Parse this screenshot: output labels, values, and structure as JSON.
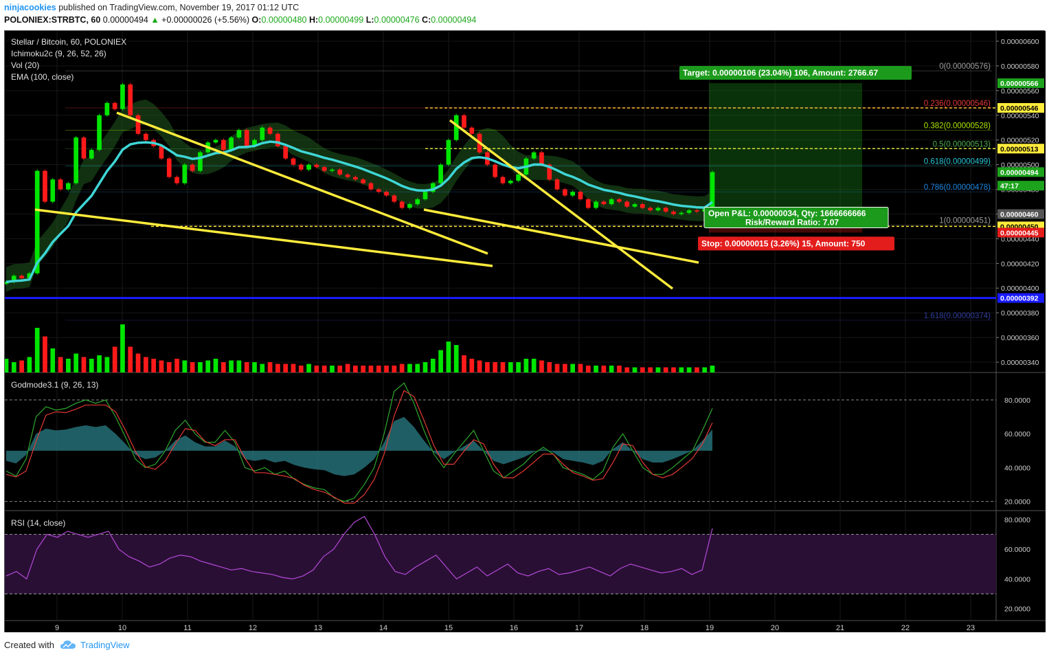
{
  "header": {
    "user": "ninjacookies",
    "published_text": "published on TradingView.com, November 19, 2017 01:12 UTC",
    "symbol_line": "POLONIEX:STRBTC, 60",
    "last_price": "0.00000494",
    "change_text": "+0.00000026 (+5.56%)",
    "o_label": "O:",
    "o_value": "0.00000480",
    "h_label": "H:",
    "h_value": "0.00000499",
    "l_label": "L:",
    "l_value": "0.00000476",
    "c_label": "C:",
    "c_value": "0.00000494"
  },
  "legend": {
    "title": "Stellar / Bitcoin, 60, POLONIEX",
    "ichimoku": "Ichimoku2c (9, 26, 52, 26)",
    "vol": "Vol (20)",
    "ema": "EMA (100, close)",
    "godmode": "Godmode3.1 (9, 26, 13)",
    "rsi": "RSI (14, close)"
  },
  "colors": {
    "bg": "#000000",
    "up": "#00e600",
    "down": "#ff1a1a",
    "ema": "#3fd6d6",
    "cloud": "#1f5a1f",
    "trendline": "#ffeb3b",
    "fib_line": "#ffeb3b",
    "support": "#1a1aff",
    "target_box": "#1c8f1c",
    "stop_box": "#e31c1c",
    "rsi_line": "#b44ad8",
    "rsi_band": "#2a0f35",
    "godmode_fill": "#2a7d86",
    "godmode_green": "#2ea82e",
    "godmode_red": "#e53935",
    "axis_text": "#d0d0d0"
  },
  "chart_data": {
    "type": "candlestick",
    "x_ticks": [
      "9",
      "10",
      "11",
      "12",
      "13",
      "14",
      "15",
      "16",
      "17",
      "18",
      "19",
      "20",
      "21",
      "22",
      "23"
    ],
    "price_axis": {
      "ticks": [
        "0.00000600",
        "0.00000580",
        "0.00000560",
        "0.00000540",
        "0.00000520",
        "0.00000500",
        "0.00000480",
        "0.00000460",
        "0.00000440",
        "0.00000420",
        "0.00000400",
        "0.00000380",
        "0.00000360",
        "0.00000340"
      ],
      "range": [
        3.35e-06,
        6.05e-06
      ]
    },
    "price_markers": [
      {
        "label": "0.00000566",
        "value": 5.66e-06,
        "style": "green"
      },
      {
        "label": "0.00000546",
        "value": 5.46e-06,
        "style": "yellow"
      },
      {
        "label": "0.00000513",
        "value": 5.13e-06,
        "style": "yellow"
      },
      {
        "label": "0.00000494",
        "value": 4.94e-06,
        "style": "green"
      },
      {
        "label": "47:17",
        "value": 4.83e-06,
        "style": "green"
      },
      {
        "label": "0.00000460",
        "value": 4.6e-06,
        "style": "gray"
      },
      {
        "label": "0.00000450",
        "value": 4.5e-06,
        "style": "yellow"
      },
      {
        "label": "0.00000445",
        "value": 4.45e-06,
        "style": "red"
      },
      {
        "label": "0.00000392",
        "value": 3.92e-06,
        "style": "blue"
      }
    ],
    "fib_levels": [
      {
        "label": "0(0.00000576)",
        "value": 5.76e-06,
        "color": "#9e9e9e"
      },
      {
        "label": "0.236(0.00000546)",
        "value": 5.46e-06,
        "color": "#e53935"
      },
      {
        "label": "0.382(0.00000528)",
        "value": 5.28e-06,
        "color": "#aeea00"
      },
      {
        "label": "0.5(0.00000513)",
        "value": 5.13e-06,
        "color": "#4caf50"
      },
      {
        "label": "0.618(0.00000499)",
        "value": 4.99e-06,
        "color": "#26c6da"
      },
      {
        "label": "0.786(0.00000478)",
        "value": 4.78e-06,
        "color": "#1e88e5"
      },
      {
        "label": "1(0.00000451)",
        "value": 4.51e-06,
        "color": "#9e9e9e"
      },
      {
        "label": "1.618(0.00000374)",
        "value": 3.74e-06,
        "color": "#303f9f"
      }
    ],
    "dashed_levels": [
      5.46e-06,
      5.13e-06,
      4.5e-06
    ],
    "support_level": 3.92e-06,
    "position": {
      "entry": 4.6e-06,
      "target": 5.66e-06,
      "stop": 4.45e-06,
      "target_text": "Target: 0.00000106 (23.04%) 106, Amount: 2766.67",
      "pnl_text": "Open P&L: 0.00000034, Qty: 1666666666",
      "rr_text": "Risk/Reward Ratio: 7.07",
      "stop_text": "Stop: 0.00000015 (3.26%) 15, Amount: 750"
    },
    "closes": [
      4.05e-06,
      4.1e-06,
      4.08e-06,
      4.12e-06,
      4.95e-06,
      4.7e-06,
      4.88e-06,
      4.8e-06,
      4.85e-06,
      5.22e-06,
      5.05e-06,
      5.12e-06,
      5.4e-06,
      5.5e-06,
      5.45e-06,
      5.65e-06,
      5.4e-06,
      5.25e-06,
      5.2e-06,
      5.15e-06,
      5.05e-06,
      4.9e-06,
      4.85e-06,
      5e-06,
      4.95e-06,
      5.1e-06,
      5.18e-06,
      5.2e-06,
      5.12e-06,
      5.22e-06,
      5.28e-06,
      5.15e-06,
      5.2e-06,
      5.3e-06,
      5.25e-06,
      5.15e-06,
      5.05e-06,
      5e-06,
      4.96e-06,
      5e-06,
      4.98e-06,
      4.95e-06,
      4.96e-06,
      4.92e-06,
      4.9e-06,
      4.88e-06,
      4.85e-06,
      4.8e-06,
      4.78e-06,
      4.75e-06,
      4.7e-06,
      4.65e-06,
      4.68e-06,
      4.72e-06,
      4.78e-06,
      4.85e-06,
      5e-06,
      5.2e-06,
      5.4e-06,
      5.3e-06,
      5.25e-06,
      5.1e-06,
      5e-06,
      4.9e-06,
      4.85e-06,
      4.87e-06,
      4.92e-06,
      5.05e-06,
      5.1e-06,
      5e-06,
      4.88e-06,
      4.8e-06,
      4.75e-06,
      4.78e-06,
      4.72e-06,
      4.65e-06,
      4.7e-06,
      4.68e-06,
      4.72e-06,
      4.7e-06,
      4.66e-06,
      4.68e-06,
      4.65e-06,
      4.63e-06,
      4.65e-06,
      4.62e-06,
      4.6e-06,
      4.61e-06,
      4.63e-06,
      4.62e-06,
      4.64e-06,
      4.94e-06
    ],
    "volumes": [
      0.8,
      0.6,
      0.7,
      0.9,
      2.6,
      2.1,
      1.4,
      0.9,
      0.8,
      1.1,
      0.9,
      0.8,
      1.0,
      0.9,
      1.5,
      2.8,
      1.5,
      1.1,
      0.9,
      0.8,
      0.7,
      0.6,
      0.8,
      0.7,
      0.6,
      0.6,
      0.7,
      0.8,
      0.6,
      0.7,
      0.7,
      0.6,
      0.6,
      0.5,
      0.6,
      0.5,
      0.5,
      0.5,
      0.4,
      0.5,
      0.4,
      0.4,
      0.4,
      0.4,
      0.5,
      0.4,
      0.4,
      0.4,
      0.4,
      0.4,
      0.4,
      0.5,
      0.5,
      0.5,
      0.6,
      0.8,
      1.3,
      1.8,
      1.6,
      1.0,
      0.8,
      0.7,
      0.6,
      0.6,
      0.6,
      0.6,
      0.6,
      0.8,
      0.8,
      0.7,
      0.6,
      0.5,
      0.5,
      0.5,
      0.5,
      0.4,
      0.4,
      0.4,
      0.4,
      0.4,
      0.3,
      0.3,
      0.3,
      0.3,
      0.3,
      0.3,
      0.3,
      0.3,
      0.3,
      0.3,
      0.3,
      0.4
    ],
    "godmode": {
      "ticks": [
        "80.0000",
        "60.0000",
        "40.0000",
        "20.0000"
      ],
      "range": [
        15,
        95
      ],
      "bands": [
        80,
        20
      ],
      "tci": [
        38,
        35,
        45,
        70,
        76,
        74,
        75,
        78,
        80,
        78,
        80,
        70,
        58,
        45,
        40,
        42,
        50,
        62,
        68,
        60,
        55,
        55,
        62,
        55,
        40,
        38,
        40,
        36,
        38,
        33,
        30,
        28,
        27,
        22,
        20,
        22,
        30,
        40,
        60,
        85,
        90,
        78,
        62,
        48,
        40,
        48,
        55,
        62,
        50,
        38,
        34,
        38,
        42,
        48,
        52,
        48,
        40,
        38,
        36,
        33,
        38,
        52,
        60,
        50,
        40,
        36,
        36,
        40,
        45,
        50,
        62,
        75
      ]
    },
    "rsi": {
      "ticks": [
        "80.0000",
        "60.0000",
        "40.0000",
        "20.0000"
      ],
      "range": [
        12,
        85
      ],
      "bands": [
        70,
        30
      ],
      "values": [
        42,
        45,
        40,
        60,
        70,
        68,
        72,
        70,
        68,
        70,
        72,
        60,
        55,
        52,
        48,
        50,
        54,
        56,
        55,
        52,
        50,
        48,
        46,
        47,
        45,
        44,
        43,
        41,
        40,
        42,
        46,
        55,
        60,
        70,
        78,
        82,
        70,
        55,
        45,
        43,
        48,
        52,
        56,
        48,
        40,
        44,
        48,
        42,
        46,
        50,
        44,
        42,
        45,
        47,
        43,
        44,
        46,
        48,
        45,
        42,
        47,
        50,
        48,
        46,
        44,
        45,
        47,
        43,
        46,
        74
      ]
    }
  },
  "footer": {
    "created_with": "Created with",
    "brand": "TradingView"
  }
}
